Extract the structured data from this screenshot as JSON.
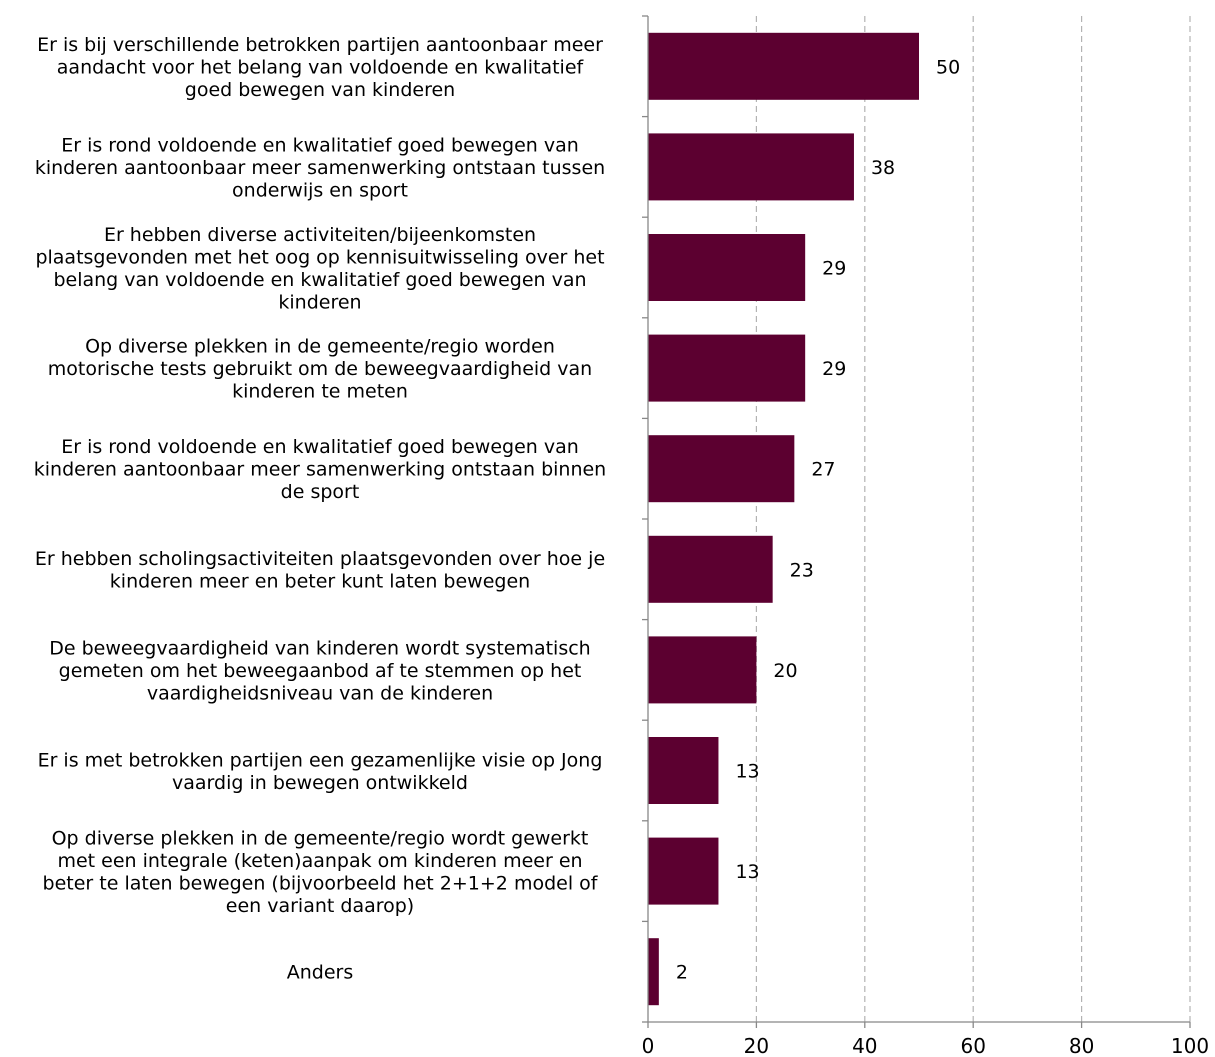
{
  "chart_data": {
    "type": "bar",
    "orientation": "horizontal",
    "categories": [
      [
        "Er is bij verschillende betrokken partijen aantoonbaar meer",
        "aandacht voor het belang van voldoende en kwalitatief",
        "goed bewegen van kinderen"
      ],
      [
        "Er is rond voldoende en kwalitatief goed bewegen van",
        "kinderen aantoonbaar meer samenwerking ontstaan tussen",
        "onderwijs en sport"
      ],
      [
        "Er hebben diverse activiteiten/bijeenkomsten",
        "plaatsgevonden met het oog op kennisuitwisseling over het",
        "belang van voldoende en kwalitatief goed bewegen van",
        "kinderen"
      ],
      [
        "Op diverse plekken in de gemeente/regio worden",
        "motorische tests gebruikt om de beweegvaardigheid van",
        "kinderen te meten"
      ],
      [
        "Er is rond voldoende en kwalitatief goed bewegen van",
        "kinderen aantoonbaar meer samenwerking ontstaan binnen",
        "de sport"
      ],
      [
        "Er hebben scholingsactiviteiten plaatsgevonden over hoe je",
        "kinderen meer en beter kunt laten bewegen"
      ],
      [
        "De beweegvaardigheid van kinderen wordt systematisch",
        "gemeten om het beweegaanbod af te stemmen op het",
        "vaardigheidsniveau van de kinderen"
      ],
      [
        "Er is met betrokken partijen een gezamenlijke visie op Jong",
        "vaardig in bewegen ontwikkeld"
      ],
      [
        "Op diverse plekken in de gemeente/regio wordt gewerkt",
        "met een integrale (keten)aanpak om kinderen meer en",
        "beter te laten bewegen (bijvoorbeeld het 2+1+2 model of",
        "een variant daarop)"
      ],
      [
        "Anders"
      ]
    ],
    "values": [
      50,
      38,
      29,
      29,
      27,
      23,
      20,
      13,
      13,
      2
    ],
    "xlim": [
      0,
      100
    ],
    "xticks": [
      0,
      20,
      40,
      60,
      80,
      100
    ],
    "bar_color": "#5c0030",
    "grid": "vertical dashed",
    "title": "",
    "xlabel": "",
    "ylabel": ""
  }
}
